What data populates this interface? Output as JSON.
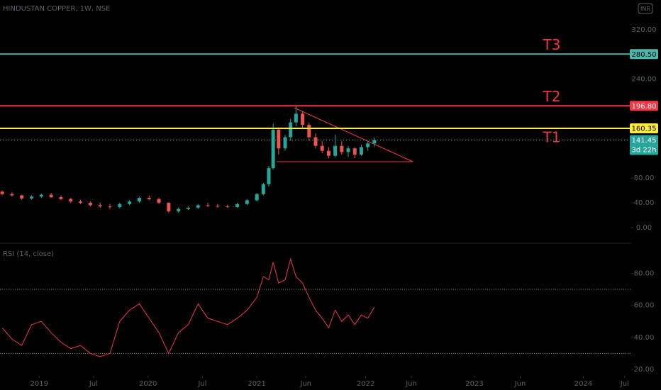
{
  "chart_data": [
    {
      "type": "candlestick",
      "title": "HINDUSTAN COPPER, 1W, NSE",
      "currency": "INR",
      "x": [
        2018.66,
        2018.75,
        2018.84,
        2018.93,
        2019.02,
        2019.11,
        2019.2,
        2019.29,
        2019.38,
        2019.47,
        2019.56,
        2019.65,
        2019.74,
        2019.83,
        2019.92,
        2020.01,
        2020.1,
        2020.19,
        2020.28,
        2020.37,
        2020.46,
        2020.55,
        2020.64,
        2020.73,
        2020.82,
        2020.91,
        2021.0,
        2021.06,
        2021.11,
        2021.15,
        2021.2,
        2021.26,
        2021.31,
        2021.36,
        2021.42,
        2021.48,
        2021.54,
        2021.6,
        2021.66,
        2021.72,
        2021.78,
        2021.84,
        2021.9,
        2021.96,
        2022.02,
        2022.08
      ],
      "open": [
        58,
        54,
        52,
        47,
        50,
        53,
        49,
        46,
        42,
        40,
        36,
        34,
        33,
        38,
        42,
        48,
        46,
        40,
        26,
        30,
        32,
        36,
        35,
        34,
        33,
        38,
        44,
        54,
        70,
        96,
        158,
        128,
        146,
        170,
        184,
        166,
        146,
        132,
        124,
        116,
        132,
        122,
        128,
        118,
        130,
        136
      ],
      "high": [
        60,
        57,
        53,
        52,
        55,
        56,
        52,
        48,
        45,
        42,
        40,
        38,
        40,
        44,
        50,
        52,
        48,
        41,
        32,
        34,
        38,
        40,
        38,
        37,
        40,
        46,
        56,
        72,
        100,
        168,
        162,
        150,
        176,
        196,
        188,
        170,
        152,
        140,
        130,
        150,
        140,
        132,
        130,
        134,
        140,
        146
      ],
      "low": [
        52,
        50,
        45,
        45,
        48,
        48,
        44,
        40,
        38,
        34,
        32,
        30,
        31,
        36,
        40,
        44,
        38,
        24,
        24,
        28,
        30,
        33,
        32,
        32,
        32,
        36,
        42,
        52,
        66,
        94,
        118,
        124,
        140,
        164,
        160,
        140,
        128,
        120,
        112,
        114,
        118,
        114,
        112,
        116,
        124,
        130
      ],
      "close": [
        54,
        52,
        47,
        50,
        53,
        49,
        46,
        42,
        40,
        36,
        34,
        33,
        38,
        42,
        48,
        46,
        40,
        26,
        30,
        32,
        36,
        35,
        34,
        33,
        38,
        44,
        54,
        70,
        96,
        158,
        128,
        146,
        170,
        184,
        166,
        146,
        132,
        124,
        116,
        132,
        122,
        128,
        118,
        130,
        136,
        141.45
      ],
      "up_color": "#26a69a",
      "down_color": "#ef5350",
      "countdown": "3d 22h",
      "levels": [
        {
          "name": "T3",
          "value": 280.5,
          "label": "280.50",
          "color": "#4db6ac",
          "text_color": "#000000"
        },
        {
          "name": "T2",
          "value": 196.8,
          "label": "196.80",
          "color": "#f23645",
          "text_color": "#ffffff"
        },
        {
          "name": "T1",
          "value": 160.35,
          "label": "160.35",
          "color": "#ffeb3b",
          "text_color": "#000000"
        }
      ],
      "xlim": [
        2018.64,
        2024.44
      ],
      "ylim": [
        -22,
        368
      ],
      "yticks": [
        {
          "value": 0,
          "label": "0.00"
        },
        {
          "value": 40,
          "label": "40.00"
        },
        {
          "value": 80,
          "label": "80.00"
        },
        {
          "value": 240,
          "label": "240.00"
        },
        {
          "value": 320,
          "label": "320.00"
        }
      ]
    },
    {
      "type": "line",
      "title": "RSI (14, close)",
      "color": "#f23645",
      "x": [
        2018.66,
        2018.75,
        2018.84,
        2018.93,
        2019.02,
        2019.11,
        2019.2,
        2019.29,
        2019.38,
        2019.47,
        2019.56,
        2019.65,
        2019.74,
        2019.83,
        2019.92,
        2020.01,
        2020.1,
        2020.19,
        2020.28,
        2020.37,
        2020.46,
        2020.55,
        2020.64,
        2020.73,
        2020.82,
        2020.91,
        2021.0,
        2021.06,
        2021.11,
        2021.15,
        2021.2,
        2021.26,
        2021.31,
        2021.36,
        2021.42,
        2021.48,
        2021.54,
        2021.6,
        2021.66,
        2021.72,
        2021.78,
        2021.84,
        2021.9,
        2021.96,
        2022.02,
        2022.08
      ],
      "values": [
        46,
        39,
        35,
        48,
        50,
        43,
        37,
        33,
        35,
        30,
        28,
        30,
        50,
        57,
        61,
        52,
        43,
        30,
        43,
        48,
        61,
        52,
        50,
        48,
        52,
        57,
        65,
        78,
        76,
        87,
        74,
        76,
        89,
        78,
        74,
        65,
        57,
        52,
        46,
        57,
        50,
        54,
        48,
        54,
        52,
        59
      ],
      "bands": [
        70,
        30
      ],
      "xlim": [
        2018.64,
        2024.44
      ],
      "ylim": [
        16,
        98
      ],
      "yticks": [
        {
          "value": 20,
          "label": "20.00"
        },
        {
          "value": 40,
          "label": "40.00"
        },
        {
          "value": 60,
          "label": "60.00"
        },
        {
          "value": 80,
          "label": "80.00"
        }
      ],
      "xticks": [
        {
          "value": 2019,
          "label": "2019"
        },
        {
          "value": 2019.5,
          "label": "Jul"
        },
        {
          "value": 2020,
          "label": "2020"
        },
        {
          "value": 2020.5,
          "label": "Jul"
        },
        {
          "value": 2021,
          "label": "2021"
        },
        {
          "value": 2021.45,
          "label": "Jun"
        },
        {
          "value": 2022,
          "label": "2022"
        },
        {
          "value": 2022.42,
          "label": "Jun"
        },
        {
          "value": 2023,
          "label": "2023"
        },
        {
          "value": 2023.42,
          "label": "Jun"
        },
        {
          "value": 2024,
          "label": "2024"
        },
        {
          "value": 2024.38,
          "label": "Jul"
        }
      ]
    }
  ]
}
